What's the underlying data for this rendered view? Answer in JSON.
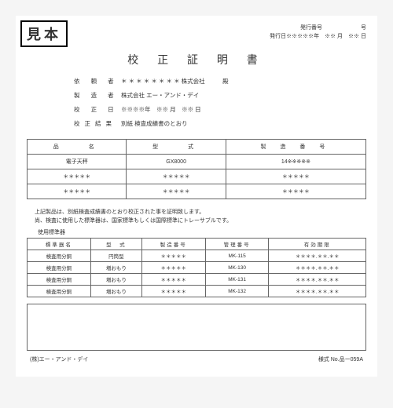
{
  "badge": "見本",
  "hdr": {
    "issue_label": "発行番号",
    "issue_suffix": "号",
    "date_label": "発行日",
    "date_val": "※※※※※年　※※ 月　※※ 日"
  },
  "title": "校 正 証 明 書",
  "info": {
    "r1": {
      "l": "依 頼 者",
      "v": "＊ ＊ ＊ ＊ ＊ ＊ ＊ ＊ 株式会社",
      "s": "殿"
    },
    "r2": {
      "l": "製 造 者",
      "v": "株式会社 エー・アンド・デイ"
    },
    "r3": {
      "l": "校 正 日",
      "v": "※※※※年　※※ 月　※※ 日"
    },
    "r4": {
      "l": "校正結果",
      "v": "別紙 検査成績書のとおり"
    }
  },
  "mt": {
    "h": [
      "品　　名",
      "型　　式",
      "製 造 番 号"
    ],
    "rows": [
      [
        "電子天秤",
        "GX8000",
        "14※※※※※"
      ],
      [
        "＊＊＊＊＊",
        "＊＊＊＊＊",
        "＊＊＊＊＊"
      ],
      [
        "＊＊＊＊＊",
        "＊＊＊＊＊",
        "＊＊＊＊＊"
      ]
    ]
  },
  "note1": "上記製品は、別紙検査成績書のとおり校正された事を証明致します。",
  "note2": "尚、検査に使用した標準器は、国家標準もしくは国際標準にトレーサブルです。",
  "sub": "使用標準器",
  "st": {
    "h": [
      "標準器名",
      "型　式",
      "製造番号",
      "管理番号",
      "有効期限"
    ],
    "rows": [
      [
        "検査用分銅",
        "円筒型",
        "＊＊＊＊＊",
        "MK-115",
        "＊＊＊＊.＊＊.＊＊"
      ],
      [
        "検査用分銅",
        "増おもり",
        "＊＊＊＊＊",
        "MK-130",
        "＊＊＊＊.＊＊.＊＊"
      ],
      [
        "検査用分銅",
        "増おもり",
        "＊＊＊＊＊",
        "MK-131",
        "＊＊＊＊.＊＊.＊＊"
      ],
      [
        "検査用分銅",
        "増おもり",
        "＊＊＊＊＊",
        "MK-132",
        "＊＊＊＊.＊＊.＊＊"
      ]
    ]
  },
  "foot": {
    "l": "(株)エー・アンド・デイ",
    "r": "様式 No.品ー059A"
  }
}
